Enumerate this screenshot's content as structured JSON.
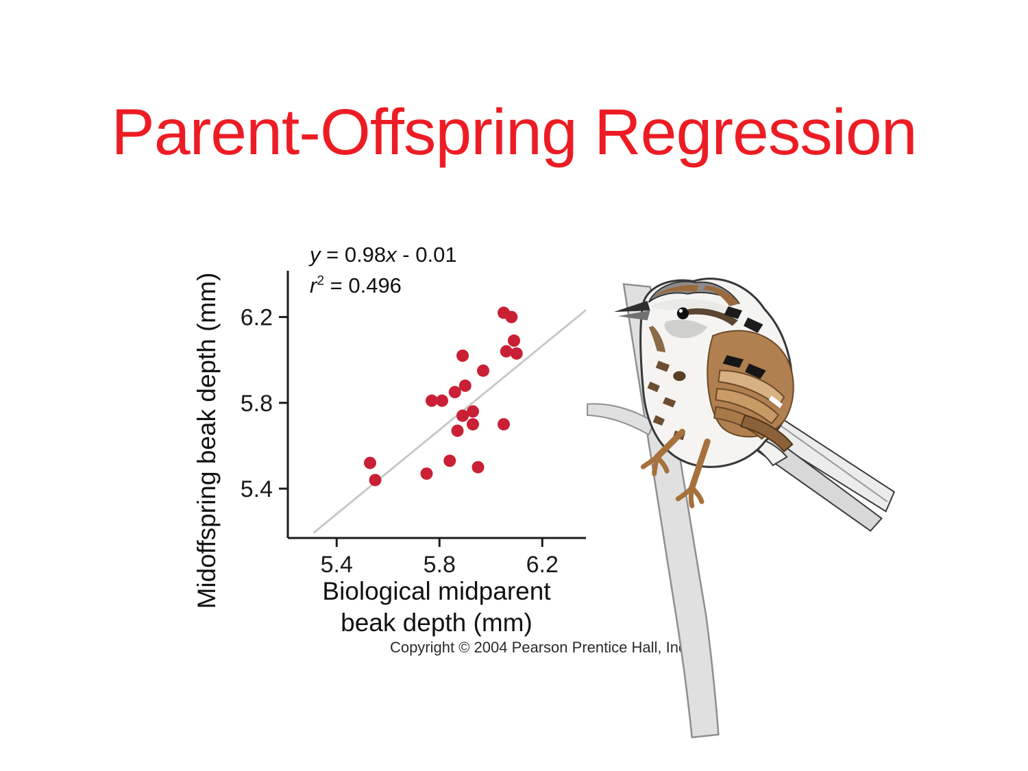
{
  "slide": {
    "title": "Parent-Offspring Regression",
    "copyright": "Copyright © 2004 Pearson Prentice Hall, Inc."
  },
  "colors": {
    "title_red": "#ed1c24",
    "point_red": "#c92035",
    "line_gray": "#c8c8c8",
    "axis_black": "#1a1a1a"
  },
  "annotation": {
    "eq_var1": "y",
    "eq_mid": " = 0.98",
    "eq_var2": "x",
    "eq_tail": " - 0.01",
    "r_var": "r",
    "r_sup": "2",
    "r_tail": " = 0.496"
  },
  "chart_data": {
    "type": "scatter",
    "title": "",
    "xlabel": "Biological midparent beak depth (mm)",
    "xlabel_lines": [
      "Biological midparent",
      "beak depth (mm)"
    ],
    "ylabel": "Midoffspring beak depth (mm)",
    "xlim": [
      5.21,
      6.37
    ],
    "ylim": [
      5.17,
      6.4
    ],
    "xticks": [
      "5.4",
      "5.8",
      "6.2"
    ],
    "yticks": [
      "5.4",
      "5.8",
      "6.2"
    ],
    "grid": false,
    "legend": "none",
    "equation_text": "y = 0.98x - 0.01",
    "r2_text": "r2 = 0.496",
    "regression": {
      "slope": 0.98,
      "intercept": -0.01,
      "r_squared": 0.496,
      "x_start": 5.31,
      "x_end": 6.37
    },
    "points": [
      [
        6.05,
        6.22
      ],
      [
        6.08,
        6.2
      ],
      [
        6.09,
        6.09
      ],
      [
        6.06,
        6.04
      ],
      [
        6.1,
        6.03
      ],
      [
        5.89,
        6.02
      ],
      [
        5.97,
        5.95
      ],
      [
        5.9,
        5.88
      ],
      [
        5.86,
        5.85
      ],
      [
        5.77,
        5.81
      ],
      [
        5.81,
        5.81
      ],
      [
        5.93,
        5.76
      ],
      [
        5.89,
        5.74
      ],
      [
        5.93,
        5.7
      ],
      [
        6.05,
        5.7
      ],
      [
        5.87,
        5.67
      ],
      [
        5.84,
        5.53
      ],
      [
        5.53,
        5.52
      ],
      [
        5.95,
        5.5
      ],
      [
        5.75,
        5.47
      ],
      [
        5.55,
        5.44
      ]
    ]
  }
}
